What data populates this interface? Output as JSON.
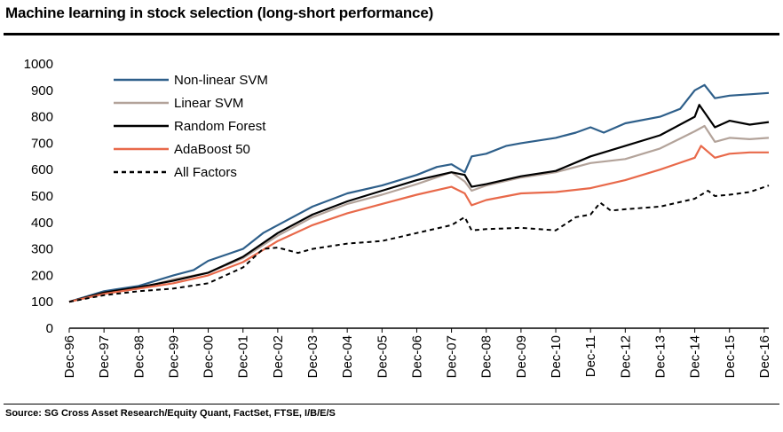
{
  "header": {
    "title": "Machine learning in stock selection (long-short performance)"
  },
  "footer": {
    "source": "Source: SG Cross Asset Research/Equity Quant, FactSet, FTSE, I/B/E/S"
  },
  "colors": {
    "nonlinear_svm": "#2e5f8a",
    "linear_svm": "#b3a39a",
    "random_forest": "#000000",
    "adaboost": "#e8694a",
    "all_factors": "#000000"
  },
  "chart_data": {
    "type": "line",
    "title": "Machine learning in stock selection (long-short performance)",
    "xlabel": "",
    "ylabel": "",
    "ylim": [
      0,
      1000
    ],
    "yticks": [
      0,
      100,
      200,
      300,
      400,
      500,
      600,
      700,
      800,
      900,
      1000
    ],
    "ytick_labels": [
      "0",
      "100",
      "200",
      "300",
      "400",
      "500",
      "600",
      "700",
      "800",
      "900",
      "1000"
    ],
    "xlim": [
      1996.92,
      2017.05
    ],
    "xtick_labels": [
      "Dec-96",
      "Dec-97",
      "Dec-98",
      "Dec-99",
      "Dec-00",
      "Dec-01",
      "Dec-02",
      "Dec-03",
      "Dec-04",
      "Dec-05",
      "Dec-06",
      "Dec-07",
      "Dec-08",
      "Dec-09",
      "Dec-10",
      "Dec-11",
      "Dec-12",
      "Dec-13",
      "Dec-14",
      "Dec-15",
      "Dec-16"
    ],
    "legend_position": "top-left",
    "series": [
      {
        "name": "Non-linear SVM",
        "color": "#2e5f8a",
        "dash": "solid",
        "points": [
          [
            1996.92,
            100
          ],
          [
            1997.92,
            140
          ],
          [
            1998.92,
            160
          ],
          [
            1999.92,
            200
          ],
          [
            2000.5,
            220
          ],
          [
            2000.92,
            255
          ],
          [
            2001.92,
            300
          ],
          [
            2002.5,
            360
          ],
          [
            2002.92,
            390
          ],
          [
            2003.92,
            460
          ],
          [
            2004.92,
            510
          ],
          [
            2005.92,
            540
          ],
          [
            2006.92,
            580
          ],
          [
            2007.5,
            610
          ],
          [
            2007.92,
            620
          ],
          [
            2008.3,
            590
          ],
          [
            2008.5,
            650
          ],
          [
            2008.92,
            660
          ],
          [
            2009.5,
            690
          ],
          [
            2009.92,
            700
          ],
          [
            2010.92,
            720
          ],
          [
            2011.5,
            740
          ],
          [
            2011.92,
            760
          ],
          [
            2012.3,
            740
          ],
          [
            2012.92,
            775
          ],
          [
            2013.92,
            800
          ],
          [
            2014.5,
            830
          ],
          [
            2014.92,
            900
          ],
          [
            2015.2,
            920
          ],
          [
            2015.5,
            870
          ],
          [
            2015.92,
            880
          ],
          [
            2016.5,
            885
          ],
          [
            2017.05,
            890
          ]
        ]
      },
      {
        "name": "Linear SVM",
        "color": "#b3a39a",
        "dash": "solid",
        "points": [
          [
            1996.92,
            100
          ],
          [
            1997.92,
            135
          ],
          [
            1998.92,
            150
          ],
          [
            1999.92,
            185
          ],
          [
            2000.92,
            210
          ],
          [
            2001.92,
            265
          ],
          [
            2002.92,
            350
          ],
          [
            2003.92,
            420
          ],
          [
            2004.92,
            470
          ],
          [
            2005.92,
            505
          ],
          [
            2006.92,
            545
          ],
          [
            2007.92,
            590
          ],
          [
            2008.3,
            555
          ],
          [
            2008.5,
            520
          ],
          [
            2008.92,
            540
          ],
          [
            2009.92,
            570
          ],
          [
            2010.92,
            590
          ],
          [
            2011.92,
            625
          ],
          [
            2012.92,
            640
          ],
          [
            2013.92,
            680
          ],
          [
            2014.92,
            745
          ],
          [
            2015.2,
            765
          ],
          [
            2015.5,
            705
          ],
          [
            2015.92,
            720
          ],
          [
            2016.5,
            715
          ],
          [
            2017.05,
            720
          ]
        ]
      },
      {
        "name": "Random Forest",
        "color": "#000000",
        "dash": "solid",
        "points": [
          [
            1996.92,
            100
          ],
          [
            1997.92,
            135
          ],
          [
            1998.92,
            155
          ],
          [
            1999.92,
            180
          ],
          [
            2000.92,
            210
          ],
          [
            2001.92,
            270
          ],
          [
            2002.92,
            360
          ],
          [
            2003.92,
            430
          ],
          [
            2004.92,
            480
          ],
          [
            2005.92,
            520
          ],
          [
            2006.92,
            560
          ],
          [
            2007.92,
            590
          ],
          [
            2008.3,
            580
          ],
          [
            2008.5,
            535
          ],
          [
            2008.92,
            545
          ],
          [
            2009.92,
            575
          ],
          [
            2010.92,
            595
          ],
          [
            2011.92,
            650
          ],
          [
            2012.92,
            690
          ],
          [
            2013.92,
            730
          ],
          [
            2014.92,
            800
          ],
          [
            2015.05,
            845
          ],
          [
            2015.5,
            760
          ],
          [
            2015.92,
            785
          ],
          [
            2016.5,
            770
          ],
          [
            2017.05,
            780
          ]
        ]
      },
      {
        "name": "AdaBoost 50",
        "color": "#e8694a",
        "dash": "solid",
        "points": [
          [
            1996.92,
            100
          ],
          [
            1997.92,
            130
          ],
          [
            1998.92,
            150
          ],
          [
            1999.92,
            170
          ],
          [
            2000.92,
            200
          ],
          [
            2001.92,
            250
          ],
          [
            2002.92,
            330
          ],
          [
            2003.92,
            390
          ],
          [
            2004.92,
            435
          ],
          [
            2005.92,
            470
          ],
          [
            2006.92,
            505
          ],
          [
            2007.92,
            535
          ],
          [
            2008.3,
            510
          ],
          [
            2008.5,
            465
          ],
          [
            2008.92,
            485
          ],
          [
            2009.92,
            510
          ],
          [
            2010.92,
            515
          ],
          [
            2011.92,
            530
          ],
          [
            2012.92,
            560
          ],
          [
            2013.92,
            600
          ],
          [
            2014.92,
            645
          ],
          [
            2015.1,
            690
          ],
          [
            2015.5,
            645
          ],
          [
            2015.92,
            660
          ],
          [
            2016.5,
            665
          ],
          [
            2017.05,
            665
          ]
        ]
      },
      {
        "name": "All Factors",
        "color": "#000000",
        "dash": "dashed",
        "points": [
          [
            1996.92,
            100
          ],
          [
            1997.92,
            125
          ],
          [
            1998.92,
            140
          ],
          [
            1999.92,
            150
          ],
          [
            2000.92,
            170
          ],
          [
            2001.92,
            230
          ],
          [
            2002.5,
            300
          ],
          [
            2002.92,
            305
          ],
          [
            2003.5,
            285
          ],
          [
            2003.92,
            300
          ],
          [
            2004.92,
            320
          ],
          [
            2005.92,
            330
          ],
          [
            2006.92,
            360
          ],
          [
            2007.92,
            390
          ],
          [
            2008.3,
            420
          ],
          [
            2008.5,
            370
          ],
          [
            2008.92,
            375
          ],
          [
            2009.92,
            380
          ],
          [
            2010.92,
            370
          ],
          [
            2011.5,
            420
          ],
          [
            2011.92,
            430
          ],
          [
            2012.2,
            475
          ],
          [
            2012.5,
            445
          ],
          [
            2012.92,
            450
          ],
          [
            2013.92,
            460
          ],
          [
            2014.92,
            490
          ],
          [
            2015.3,
            520
          ],
          [
            2015.5,
            500
          ],
          [
            2015.92,
            505
          ],
          [
            2016.5,
            515
          ],
          [
            2017.05,
            540
          ]
        ]
      }
    ]
  }
}
